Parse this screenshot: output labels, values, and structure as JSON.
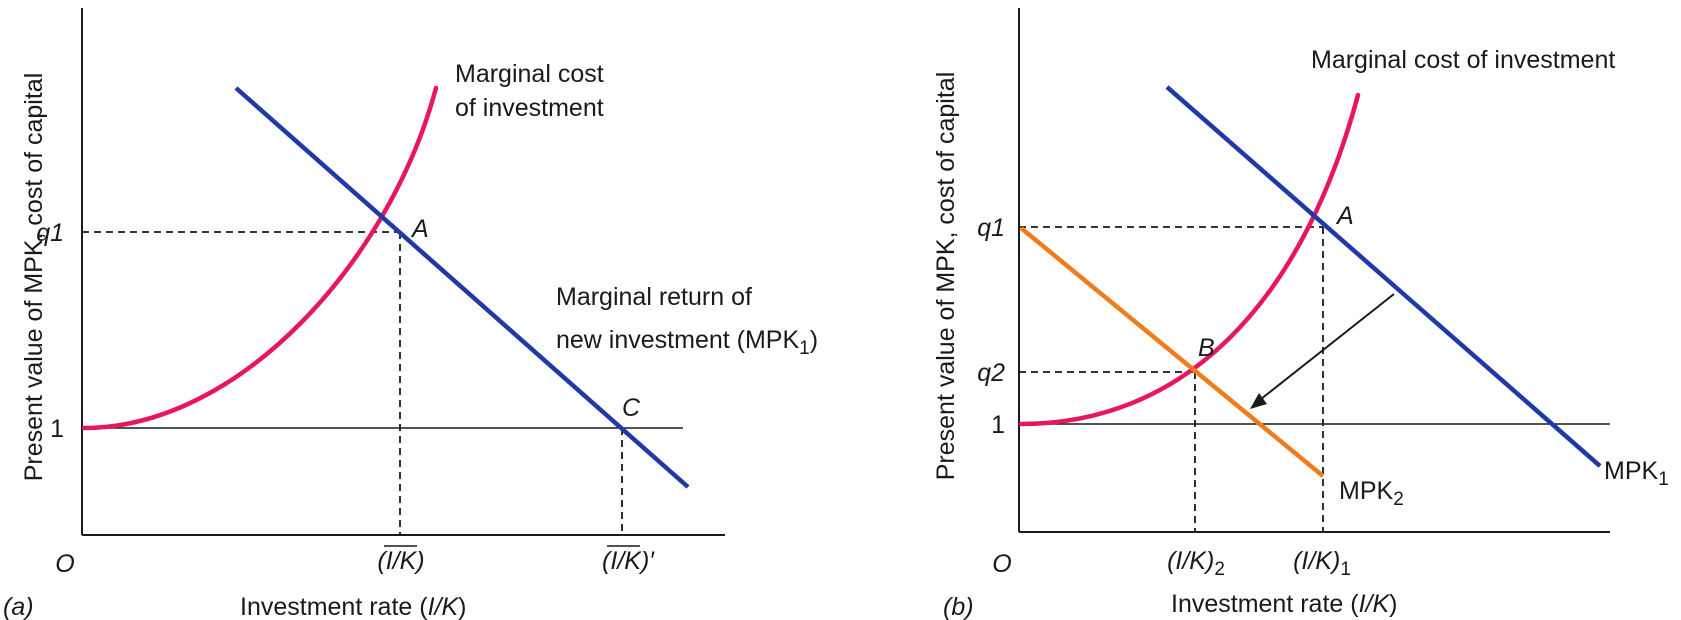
{
  "colors": {
    "marginal_cost": "#e8175d",
    "mpk1": "#1f3aa6",
    "mpk2": "#f07c1e",
    "ink": "#1a1a1a"
  },
  "panel_a": {
    "tag": "(a)",
    "origin": "O",
    "y_axis_label": "Present value of MPK, cost of capital",
    "x_axis_label_text": "Investment rate (",
    "x_axis_label_var": "I/K",
    "x_axis_label_close": ")",
    "y_ticks": {
      "q1": "q1",
      "one": "1"
    },
    "x_ticks": {
      "ik_bar": "(I/K)",
      "ik_bar_prime": "(I/K)′"
    },
    "points": {
      "A": "A",
      "C": "C"
    },
    "mc_label_line1": "Marginal cost",
    "mc_label_line2": "of investment",
    "mpk_label_line1": "Marginal return of",
    "mpk_label_line2": "new investment (MPK",
    "mpk_label_sub": "1",
    "mpk_label_close": ")"
  },
  "panel_b": {
    "tag": "(b)",
    "origin": "O",
    "y_axis_label": "Present value of MPK, cost of capital",
    "x_axis_label_text": "Investment rate (",
    "x_axis_label_var": "I/K",
    "x_axis_label_close": ")",
    "y_ticks": {
      "q1": "q1",
      "q2": "q2",
      "one": "1"
    },
    "x_ticks": {
      "ik2_main": "(I/K)",
      "ik2_sub": "2",
      "ik1_main": "(I/K)",
      "ik1_sub": "1"
    },
    "points": {
      "A": "A",
      "B": "B"
    },
    "mc_label": "Marginal cost of investment",
    "mpk1_label": "MPK",
    "mpk1_sub": "1",
    "mpk2_label": "MPK",
    "mpk2_sub": "2"
  }
}
